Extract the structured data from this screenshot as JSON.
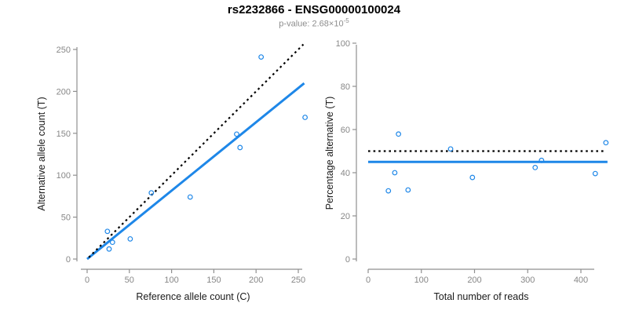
{
  "header": {
    "title": "rs2232866 - ENSG00000100024",
    "subtitle_prefix": "p-value: 2.68×10",
    "subtitle_exponent": "-5"
  },
  "colors": {
    "accent_blue": "#1E87E8",
    "dotted_black": "#000000",
    "axis_gray": "#8f8f8f",
    "tick_label_gray": "#878787",
    "axis_title_black": "#1a1a1a"
  },
  "chart_data": [
    {
      "type": "scatter",
      "xlabel": "Reference allele count (C)",
      "ylabel": "Alternative allele count (T)",
      "xlim": [
        0,
        257
      ],
      "ylim": [
        0,
        250
      ],
      "xticks": [
        0,
        50,
        100,
        150,
        200,
        250
      ],
      "yticks": [
        0,
        50,
        100,
        150,
        200,
        250
      ],
      "grid": false,
      "points": [
        {
          "x": 24,
          "y": 33
        },
        {
          "x": 26,
          "y": 12
        },
        {
          "x": 30,
          "y": 20
        },
        {
          "x": 51,
          "y": 24
        },
        {
          "x": 76,
          "y": 79
        },
        {
          "x": 122,
          "y": 74
        },
        {
          "x": 177,
          "y": 149
        },
        {
          "x": 181,
          "y": 133
        },
        {
          "x": 206,
          "y": 241
        },
        {
          "x": 258,
          "y": 169
        }
      ],
      "lines": [
        {
          "name": "regression",
          "style": "solid",
          "color": "#1E87E8",
          "slope": 0.816,
          "intercept": 0,
          "x0": 0,
          "x1": 257
        },
        {
          "name": "identity",
          "style": "dotted",
          "color": "#000000",
          "slope": 1,
          "intercept": 0,
          "x0": 2,
          "x1": 256
        }
      ]
    },
    {
      "type": "scatter",
      "xlabel": "Total number of reads",
      "ylabel": "Percentage alternative (T)",
      "xlim": [
        0,
        450
      ],
      "ylim": [
        0,
        100
      ],
      "xticks": [
        0,
        100,
        200,
        300,
        400
      ],
      "yticks": [
        0,
        20,
        40,
        60,
        80,
        100
      ],
      "grid": false,
      "points": [
        {
          "x": 57,
          "y": 57.9
        },
        {
          "x": 38,
          "y": 31.6
        },
        {
          "x": 50,
          "y": 40.0
        },
        {
          "x": 75,
          "y": 32.0
        },
        {
          "x": 155,
          "y": 51.0
        },
        {
          "x": 196,
          "y": 37.8
        },
        {
          "x": 326,
          "y": 45.7
        },
        {
          "x": 314,
          "y": 42.4
        },
        {
          "x": 447,
          "y": 53.9
        },
        {
          "x": 427,
          "y": 39.6
        }
      ],
      "lines": [
        {
          "name": "mean",
          "style": "solid",
          "color": "#1E87E8",
          "y": 45,
          "x0": 0,
          "x1": 450
        },
        {
          "name": "fifty-percent",
          "style": "dotted",
          "color": "#000000",
          "y": 50,
          "x0": 0,
          "x1": 444
        }
      ]
    }
  ]
}
